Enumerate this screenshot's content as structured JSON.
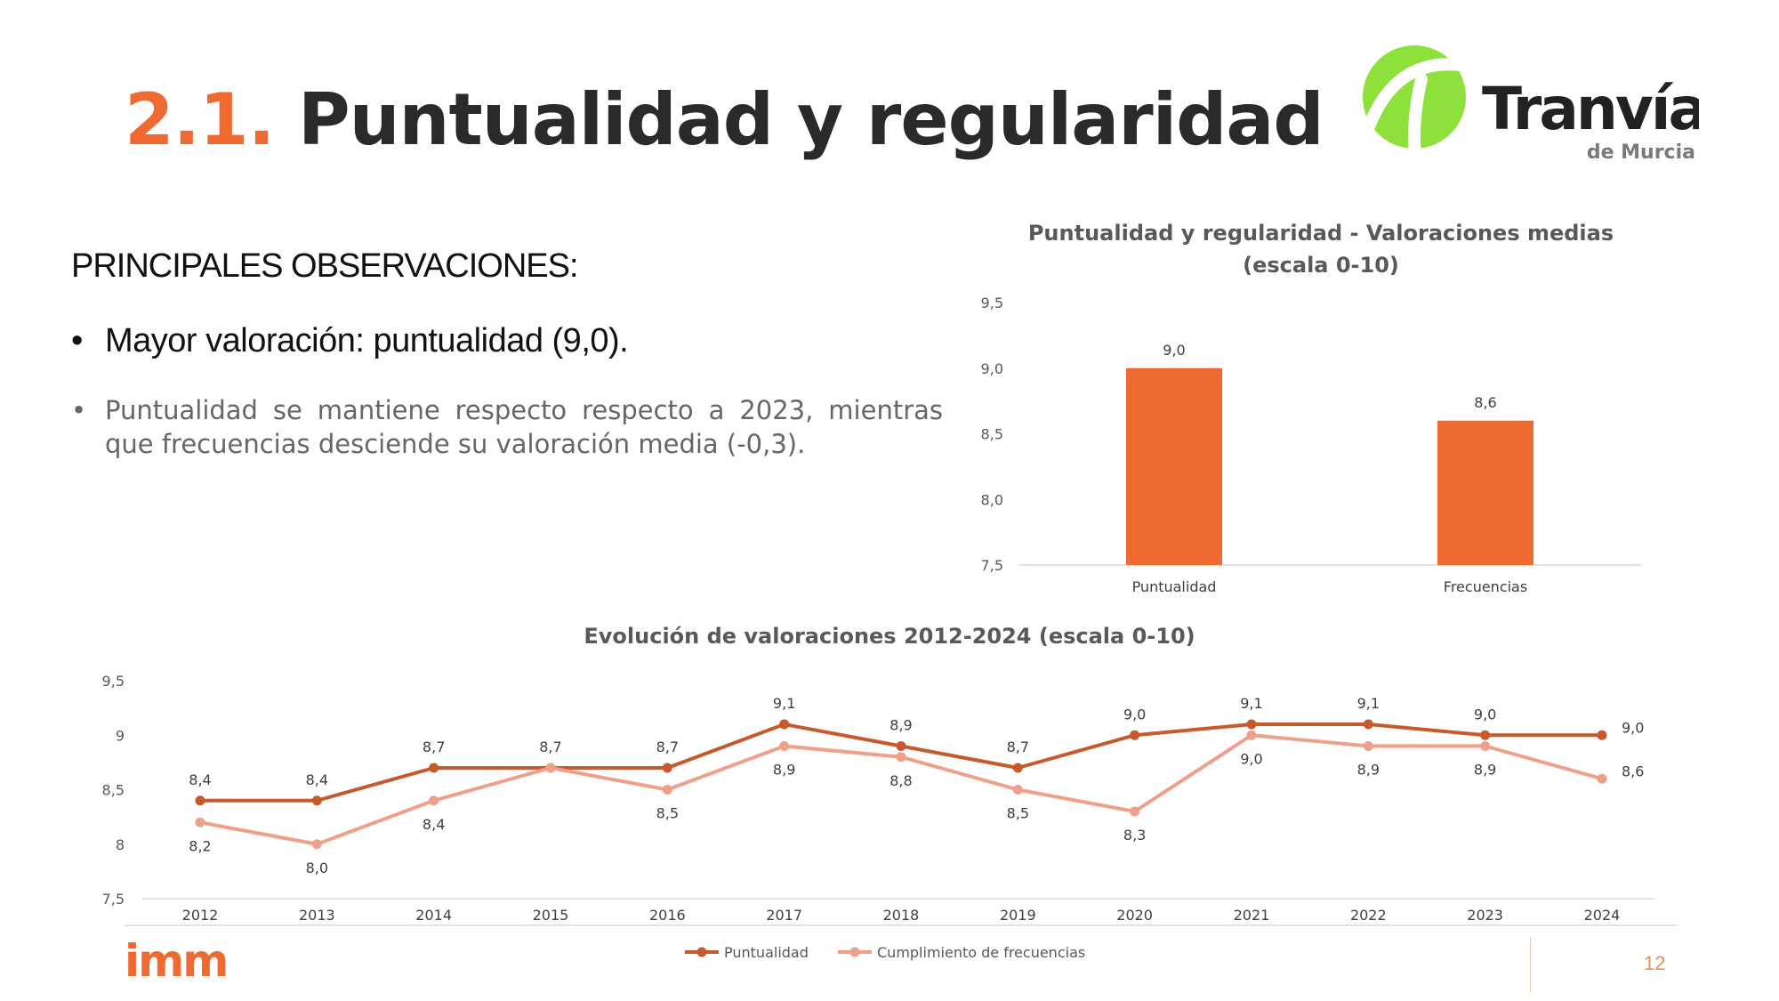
{
  "slide": {
    "title_number": "2.1.",
    "title_text": "Puntualidad y regularidad",
    "observations_heading": "PRINCIPALES OBSERVACIONES:",
    "bullet_main": "Mayor valoración: puntualidad (9,0).",
    "bullet_detail": "Puntualidad se mantiene respecto respecto a 2023, mientras que frecuencias desciende su valoración media (-0,3).",
    "bullet_symbol": "•",
    "page_number": "12"
  },
  "logos": {
    "tranvia_name": "Tranvía",
    "tranvia_sub": "de Murcia",
    "imm_name": "imm"
  },
  "colors": {
    "accent": "#ee6a30",
    "line_puntualidad": "#c65a2c",
    "line_frecuencias": "#eea08a",
    "logo_green": "#8ee03a"
  },
  "chart_data": [
    {
      "type": "bar",
      "title_line1": "Puntualidad y regularidad - Valoraciones medias",
      "title_line2": "(escala 0-10)",
      "categories": [
        "Puntualidad",
        "Frecuencias"
      ],
      "values": [
        9.0,
        8.6
      ],
      "value_labels": [
        "9,0",
        "8,6"
      ],
      "ylim": [
        7.5,
        9.5
      ],
      "yticks": [
        "7,5",
        "8,0",
        "8,5",
        "9,0",
        "9,5"
      ],
      "color": "#ee6a30",
      "grid": false
    },
    {
      "type": "line",
      "title": "Evolución de valoraciones 2012-2024 (escala 0-10)",
      "x": [
        "2012",
        "2013",
        "2014",
        "2015",
        "2016",
        "2017",
        "2018",
        "2019",
        "2020",
        "2021",
        "2022",
        "2023",
        "2024"
      ],
      "ylim": [
        7.5,
        9.5
      ],
      "yticks": [
        "7,5",
        "8",
        "8,5",
        "9",
        "9,5"
      ],
      "legend_position": "bottom",
      "grid": false,
      "series": [
        {
          "name": "Puntualidad",
          "values": [
            8.4,
            8.4,
            8.7,
            8.7,
            8.7,
            9.1,
            8.9,
            8.7,
            9.0,
            9.1,
            9.1,
            9.0,
            9.0
          ],
          "labels": [
            "8,4",
            "8,4",
            "8,7",
            "8,7",
            "8,7",
            "9,1",
            "8,9",
            "8,7",
            "9,0",
            "9,1",
            "9,1",
            "9,0",
            "9,0"
          ]
        },
        {
          "name": "Cumplimiento de frecuencias",
          "values": [
            8.2,
            8.0,
            8.4,
            8.7,
            8.5,
            8.9,
            8.8,
            8.5,
            8.3,
            9.0,
            8.9,
            8.9,
            8.6
          ],
          "labels": [
            "8,2",
            "8,0",
            "8,4",
            "",
            "8,5",
            "8,9",
            "8,8",
            "8,5",
            "8,3",
            "9,0",
            "8,9",
            "8,9",
            "8,6"
          ]
        }
      ]
    }
  ]
}
